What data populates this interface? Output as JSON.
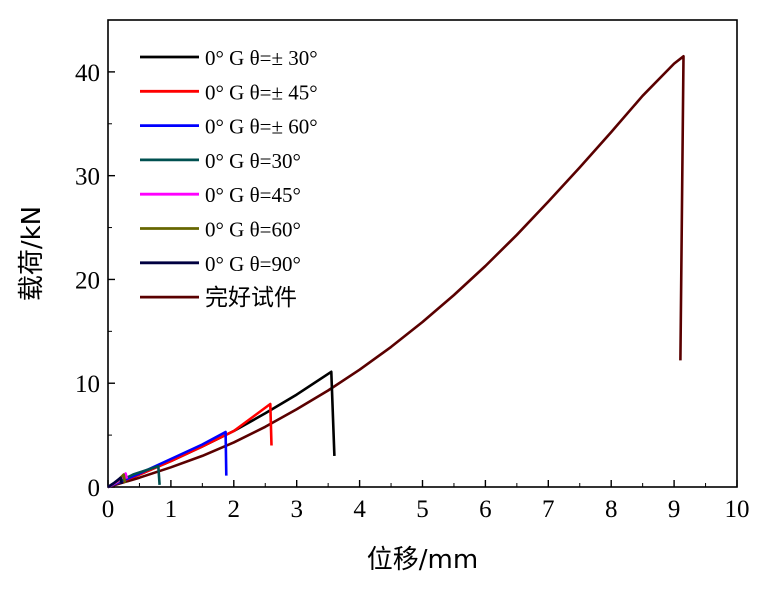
{
  "chart_data": {
    "type": "line",
    "title": "",
    "xlabel": "位移/mm",
    "ylabel": "载荷/kN",
    "xlim": [
      0,
      10
    ],
    "ylim": [
      0,
      45
    ],
    "x_ticks": [
      "0",
      "1",
      "2",
      "3",
      "4",
      "5",
      "6",
      "7",
      "8",
      "9",
      "10"
    ],
    "y_ticks": [
      "0",
      "10",
      "20",
      "30",
      "40"
    ],
    "grid": false,
    "legend_position": "top-left",
    "series": [
      {
        "name": "0° G θ=± 30°",
        "color": "#000000",
        "points": [
          [
            0,
            0
          ],
          [
            0.5,
            1.2
          ],
          [
            1.0,
            2.5
          ],
          [
            1.5,
            3.9
          ],
          [
            2.0,
            5.4
          ],
          [
            2.5,
            7.1
          ],
          [
            3.0,
            8.9
          ],
          [
            3.55,
            11.1
          ],
          [
            3.6,
            3.0
          ]
        ]
      },
      {
        "name": "0° G θ=± 45°",
        "color": "#ff0000",
        "points": [
          [
            0,
            0
          ],
          [
            0.5,
            1.2
          ],
          [
            1.0,
            2.5
          ],
          [
            1.5,
            3.9
          ],
          [
            2.0,
            5.4
          ],
          [
            2.58,
            8.0
          ],
          [
            2.6,
            4.0
          ]
        ]
      },
      {
        "name": "0° G θ=± 60°",
        "color": "#0000ff",
        "points": [
          [
            0,
            0
          ],
          [
            0.5,
            1.3
          ],
          [
            1.0,
            2.7
          ],
          [
            1.5,
            4.1
          ],
          [
            1.87,
            5.3
          ],
          [
            1.88,
            1.1
          ]
        ]
      },
      {
        "name": "0° G θ=30°",
        "color": "#005050",
        "points": [
          [
            0,
            0
          ],
          [
            0.4,
            1.2
          ],
          [
            0.8,
            2.0
          ],
          [
            0.82,
            0.2
          ]
        ]
      },
      {
        "name": "0° G θ=45°",
        "color": "#ff00ff",
        "points": [
          [
            0,
            0
          ],
          [
            0.15,
            0.5
          ],
          [
            0.28,
            1.3
          ],
          [
            0.3,
            0.8
          ]
        ]
      },
      {
        "name": "0° G θ=60°",
        "color": "#666600",
        "points": [
          [
            0,
            0
          ],
          [
            0.15,
            0.6
          ],
          [
            0.25,
            1.2
          ],
          [
            0.27,
            0.4
          ]
        ]
      },
      {
        "name": "0° G θ=90°",
        "color": "#000040",
        "points": [
          [
            0,
            0
          ],
          [
            0.1,
            0.4
          ],
          [
            0.2,
            0.9
          ],
          [
            0.22,
            0.3
          ]
        ]
      },
      {
        "name": "完好试件",
        "color": "#5a0000",
        "points": [
          [
            0,
            0
          ],
          [
            0.5,
            0.9
          ],
          [
            1.0,
            1.9
          ],
          [
            1.5,
            3.0
          ],
          [
            2.0,
            4.3
          ],
          [
            2.5,
            5.8
          ],
          [
            3.0,
            7.5
          ],
          [
            3.5,
            9.3
          ],
          [
            4.0,
            11.3
          ],
          [
            4.5,
            13.5
          ],
          [
            5.0,
            15.9
          ],
          [
            5.5,
            18.5
          ],
          [
            6.0,
            21.3
          ],
          [
            6.5,
            24.3
          ],
          [
            7.0,
            27.5
          ],
          [
            7.5,
            30.8
          ],
          [
            8.0,
            34.2
          ],
          [
            8.5,
            37.7
          ],
          [
            9.0,
            40.8
          ],
          [
            9.15,
            41.5
          ],
          [
            9.1,
            12.2
          ]
        ]
      }
    ]
  }
}
